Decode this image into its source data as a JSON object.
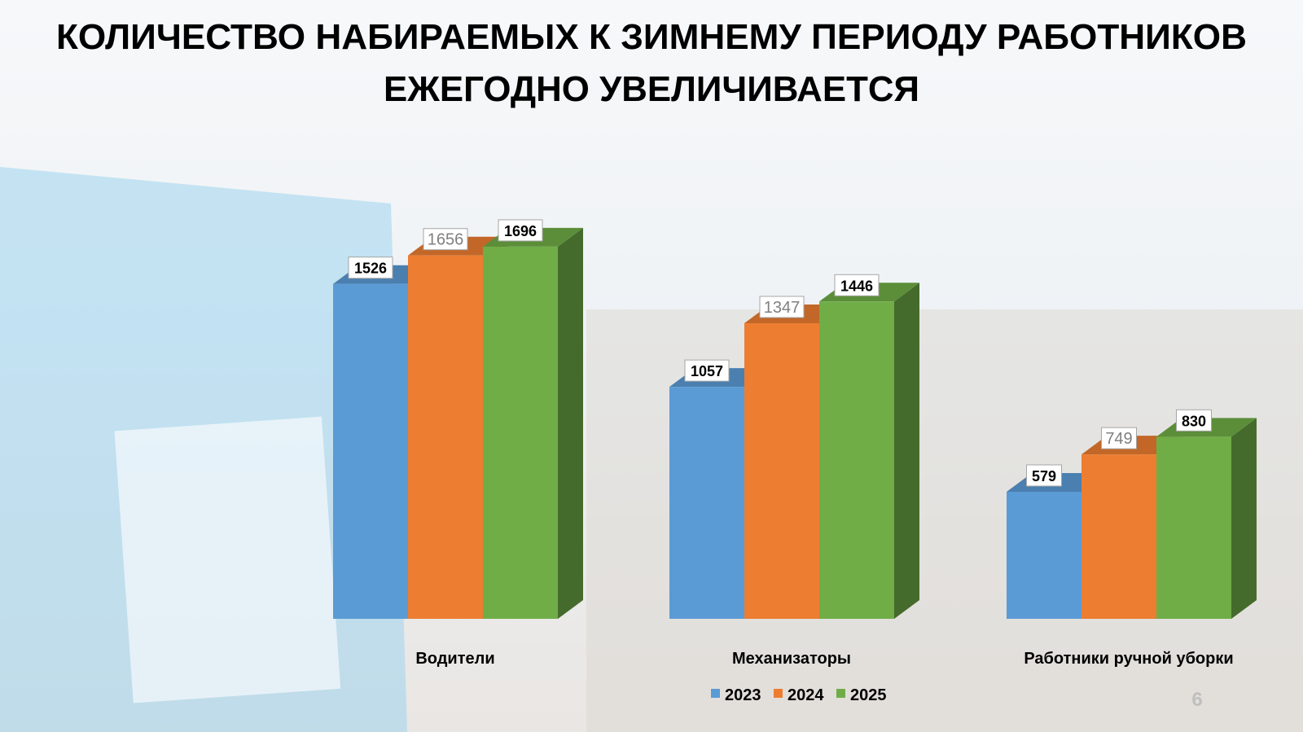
{
  "chart_data": {
    "type": "bar3d",
    "title": [
      "КОЛИЧЕСТВО НАБИРАЕМЫХ К ЗИМНЕМУ ПЕРИОДУ РАБОТНИКОВ",
      "ЕЖЕГОДНО УВЕЛИЧИВАЕТСЯ"
    ],
    "categories": [
      "Водители",
      "Механизаторы",
      "Работники ручной уборки"
    ],
    "series": [
      {
        "name": "2023",
        "color": "#5b9bd5",
        "values": [
          1526,
          1057,
          579
        ]
      },
      {
        "name": "2024",
        "color": "#ed7d31",
        "values": [
          1656,
          1347,
          749
        ]
      },
      {
        "name": "2025",
        "color": "#70ad47",
        "values": [
          1696,
          1446,
          830
        ]
      }
    ],
    "page_number": "6"
  }
}
